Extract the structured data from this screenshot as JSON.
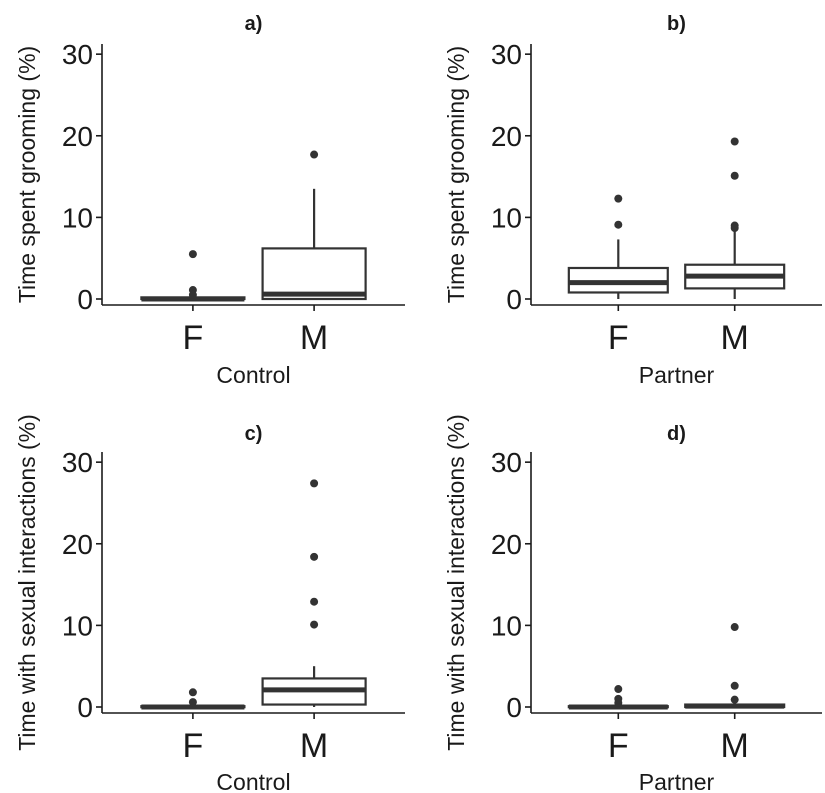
{
  "chart_data": [
    {
      "type": "box",
      "title": "a)",
      "xlabel": "Control",
      "ylabel": "Time spent grooming (%)",
      "ylim": [
        0,
        31
      ],
      "yticks": [
        0,
        10,
        20,
        30
      ],
      "categories": [
        "F",
        "M"
      ],
      "boxes": [
        {
          "category": "F",
          "q1": 0,
          "median": 0,
          "q3": 0.2,
          "whisker_low": 0,
          "whisker_high": 0.2,
          "outliers": [
            5.5,
            1.1,
            0.5
          ]
        },
        {
          "category": "M",
          "q1": 0,
          "median": 0.6,
          "q3": 6.2,
          "whisker_low": 0,
          "whisker_high": 13.5,
          "outliers": [
            17.7
          ]
        }
      ]
    },
    {
      "type": "box",
      "title": "b)",
      "xlabel": "Partner",
      "ylabel": "Time spent grooming (%)",
      "ylim": [
        0,
        31
      ],
      "yticks": [
        0,
        10,
        20,
        30
      ],
      "categories": [
        "F",
        "M"
      ],
      "boxes": [
        {
          "category": "F",
          "q1": 0.8,
          "median": 2.0,
          "q3": 3.8,
          "whisker_low": 0,
          "whisker_high": 7.3,
          "outliers": [
            12.3,
            9.1
          ]
        },
        {
          "category": "M",
          "q1": 1.3,
          "median": 2.8,
          "q3": 4.2,
          "whisker_low": 0,
          "whisker_high": 8.4,
          "outliers": [
            19.3,
            15.1,
            9.0,
            8.7
          ]
        }
      ]
    },
    {
      "type": "box",
      "title": "c)",
      "xlabel": "Control",
      "ylabel": "Time with sexual interactions (%)",
      "ylim": [
        0,
        31
      ],
      "yticks": [
        0,
        10,
        20,
        30
      ],
      "categories": [
        "F",
        "M"
      ],
      "boxes": [
        {
          "category": "F",
          "q1": 0,
          "median": 0,
          "q3": 0.1,
          "whisker_low": 0,
          "whisker_high": 0.1,
          "outliers": [
            1.8,
            0.6
          ]
        },
        {
          "category": "M",
          "q1": 0.3,
          "median": 2.1,
          "q3": 3.5,
          "whisker_low": 0,
          "whisker_high": 5.0,
          "outliers": [
            27.4,
            18.4,
            12.9,
            10.1
          ]
        }
      ]
    },
    {
      "type": "box",
      "title": "d)",
      "xlabel": "Partner",
      "ylabel": "Time with sexual interactions (%)",
      "ylim": [
        0,
        31
      ],
      "yticks": [
        0,
        10,
        20,
        30
      ],
      "categories": [
        "F",
        "M"
      ],
      "boxes": [
        {
          "category": "F",
          "q1": 0,
          "median": 0,
          "q3": 0.1,
          "whisker_low": 0,
          "whisker_high": 0.1,
          "outliers": [
            2.2,
            1.0,
            0.5
          ]
        },
        {
          "category": "M",
          "q1": 0,
          "median": 0.1,
          "q3": 0.3,
          "whisker_low": 0,
          "whisker_high": 0.5,
          "outliers": [
            9.8,
            2.6,
            0.9
          ]
        }
      ]
    }
  ]
}
